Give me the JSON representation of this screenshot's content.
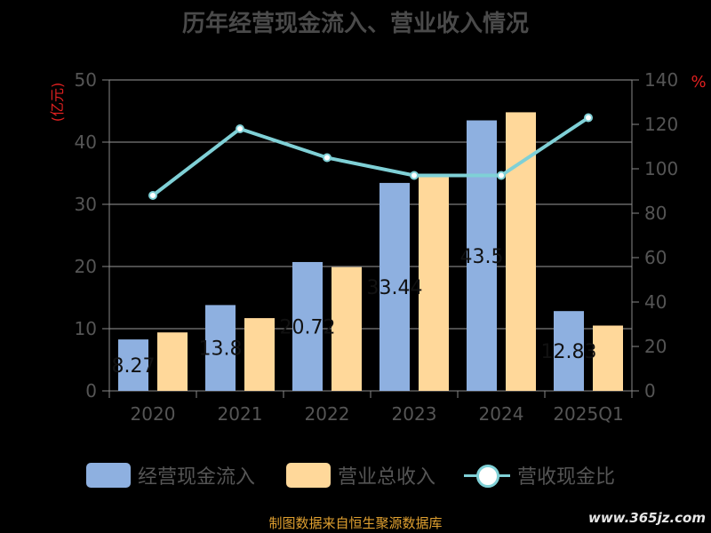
{
  "chart_data": {
    "type": "bar",
    "title": "历年经营现金流入、营业收入情况",
    "categories": [
      "2020",
      "2021",
      "2022",
      "2023",
      "2024",
      "2025Q1"
    ],
    "y_left": {
      "label": "(亿元)",
      "ylim": [
        0,
        50
      ],
      "ticks": [
        0,
        10,
        20,
        30,
        40,
        50
      ]
    },
    "y_right": {
      "label": "%",
      "ylim": [
        0,
        140
      ],
      "ticks": [
        0,
        20,
        40,
        60,
        80,
        100,
        120,
        140
      ]
    },
    "series": [
      {
        "name": "经营现金流入",
        "type": "bar",
        "axis": "left",
        "color": "#8eb0e0",
        "values": [
          8.27,
          13.8,
          20.72,
          33.44,
          43.5,
          12.83
        ],
        "labels": [
          "8.27",
          "13.8",
          "20.72",
          "33.44",
          "43.5",
          "12.83"
        ]
      },
      {
        "name": "营业总收入",
        "type": "bar",
        "axis": "left",
        "color": "#ffd89a",
        "values": [
          9.4,
          11.7,
          19.9,
          34.5,
          44.8,
          10.5
        ]
      },
      {
        "name": "营收现金比",
        "type": "line",
        "axis": "right",
        "color": "#7fd0d6",
        "values": [
          88,
          118,
          105,
          97,
          97,
          123
        ]
      }
    ],
    "grid": true,
    "legend_position": "bottom"
  },
  "source_note": "制图数据来自恒生聚源数据库",
  "watermark": "www.365jz.com"
}
